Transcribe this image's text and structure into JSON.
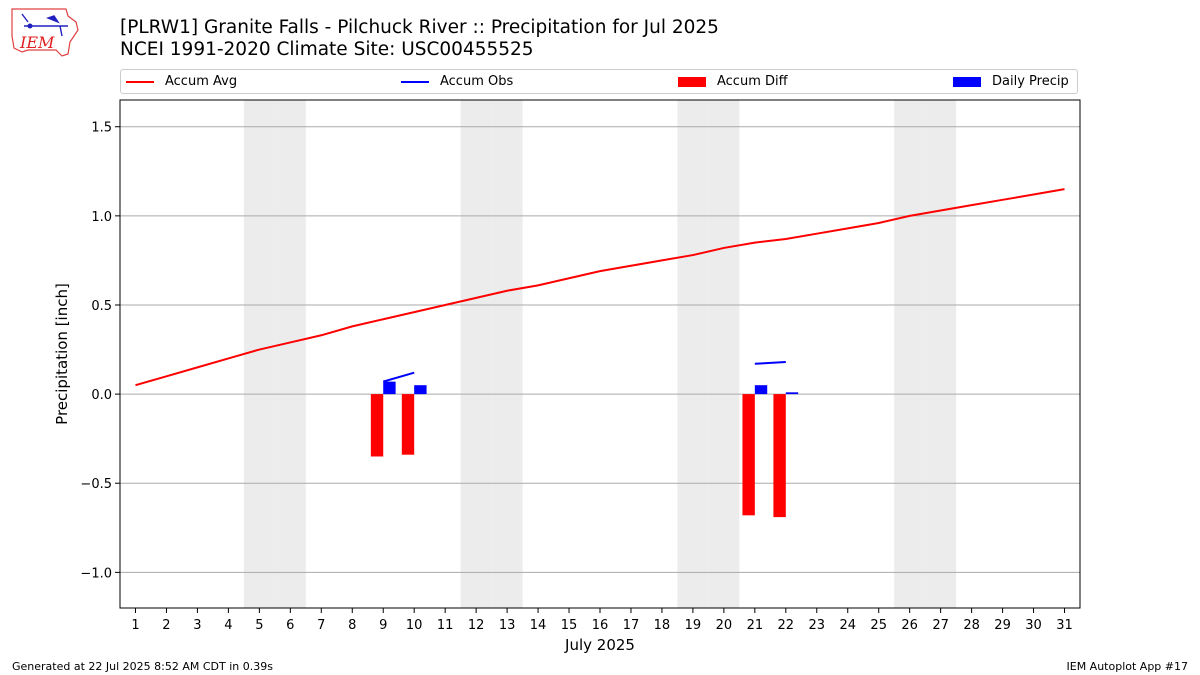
{
  "title_line1": "[PLRW1] Granite Falls - Pilchuck River :: Precipitation for Jul 2025",
  "title_line2": "NCEI 1991-2020 Climate Site: USC00455525",
  "logo_text": "IEM",
  "footer_left": "Generated at 22 Jul 2025 8:52 AM CDT in 0.39s",
  "footer_right": "IEM Autoplot App #17",
  "colors": {
    "avg": "#ff0000",
    "obs": "#0000ff",
    "diff": "#ff0000",
    "daily": "#0000ff",
    "weekend": "#ececec",
    "grid": "#aaaaaa"
  },
  "legend": [
    {
      "label": "Accum Avg",
      "kind": "line",
      "color": "#ff0000"
    },
    {
      "label": "Accum Obs",
      "kind": "line",
      "color": "#0000ff"
    },
    {
      "label": "Accum Diff",
      "kind": "patch",
      "color": "#ff0000"
    },
    {
      "label": "Daily Precip",
      "kind": "patch",
      "color": "#0000ff"
    }
  ],
  "chart_data": {
    "type": "bar",
    "title": "[PLRW1] Granite Falls - Pilchuck River :: Precipitation for Jul 2025",
    "subtitle": "NCEI 1991-2020 Climate Site: USC00455525",
    "xlabel": "July 2025",
    "ylabel": "Precipitation [inch]",
    "xlim": [
      0.5,
      31.5
    ],
    "ylim": [
      -1.2,
      1.65
    ],
    "yticks": [
      -1.0,
      -0.5,
      0.0,
      0.5,
      1.0,
      1.5
    ],
    "ytick_labels": [
      "−1.0",
      "−0.5",
      "0.0",
      "0.5",
      "1.0",
      "1.5"
    ],
    "days": [
      1,
      2,
      3,
      4,
      5,
      6,
      7,
      8,
      9,
      10,
      11,
      12,
      13,
      14,
      15,
      16,
      17,
      18,
      19,
      20,
      21,
      22,
      23,
      24,
      25,
      26,
      27,
      28,
      29,
      30,
      31
    ],
    "weekend_days": [
      5,
      6,
      12,
      13,
      19,
      20,
      26,
      27
    ],
    "grid": true,
    "legend_position": "top",
    "series": [
      {
        "name": "Accum Avg",
        "kind": "line",
        "x": [
          1,
          2,
          3,
          4,
          5,
          6,
          7,
          8,
          9,
          10,
          11,
          12,
          13,
          14,
          15,
          16,
          17,
          18,
          19,
          20,
          21,
          22,
          23,
          24,
          25,
          26,
          27,
          28,
          29,
          30,
          31
        ],
        "values": [
          0.05,
          0.1,
          0.15,
          0.2,
          0.25,
          0.29,
          0.33,
          0.38,
          0.42,
          0.46,
          0.5,
          0.54,
          0.58,
          0.61,
          0.65,
          0.69,
          0.72,
          0.75,
          0.78,
          0.82,
          0.85,
          0.87,
          0.9,
          0.93,
          0.96,
          1.0,
          1.03,
          1.06,
          1.09,
          1.12,
          1.15
        ]
      },
      {
        "name": "Accum Obs",
        "kind": "segments",
        "segments": [
          {
            "x": [
              9,
              10
            ],
            "values": [
              0.07,
              0.12
            ]
          },
          {
            "x": [
              21,
              22
            ],
            "values": [
              0.17,
              0.18
            ]
          }
        ]
      },
      {
        "name": "Accum Diff",
        "kind": "bar",
        "x": [
          9,
          10,
          21,
          22
        ],
        "values": [
          -0.35,
          -0.34,
          -0.68,
          -0.69
        ]
      },
      {
        "name": "Daily Precip",
        "kind": "bar",
        "x": [
          9,
          10,
          21,
          22
        ],
        "values": [
          0.07,
          0.05,
          0.05,
          0.01
        ]
      }
    ]
  }
}
